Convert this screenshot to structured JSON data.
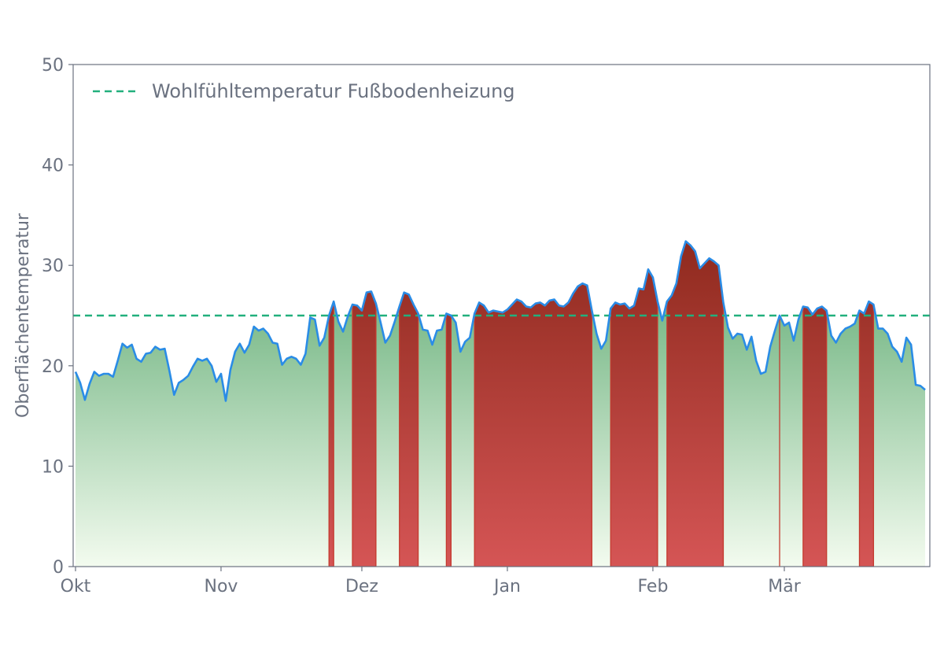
{
  "chart_data": {
    "type": "area",
    "ylabel": "Oberflächentemperatur",
    "xlabel": "",
    "ylim": [
      0,
      50
    ],
    "y_ticks": [
      0,
      10,
      20,
      30,
      40,
      50
    ],
    "x_ticks": [
      {
        "label": "Okt",
        "day": 0
      },
      {
        "label": "Nov",
        "day": 31
      },
      {
        "label": "Dez",
        "day": 61
      },
      {
        "label": "Jan",
        "day": 92
      },
      {
        "label": "Feb",
        "day": 123
      },
      {
        "label": "Mär",
        "day": 151
      }
    ],
    "x_range_days": [
      -0.5,
      182
    ],
    "threshold": {
      "label": "Wohlfühltemperatur Fußbodenheizung",
      "value": 25
    },
    "legend_position": "top-left",
    "series": [
      {
        "name": "Oberflächentemperatur",
        "points": [
          [
            0,
            19.4
          ],
          [
            1,
            18.3
          ],
          [
            2,
            16.6
          ],
          [
            3,
            18.2
          ],
          [
            4,
            19.4
          ],
          [
            5,
            19.0
          ],
          [
            6,
            19.2
          ],
          [
            7,
            19.2
          ],
          [
            8,
            18.9
          ],
          [
            9,
            20.5
          ],
          [
            10,
            22.2
          ],
          [
            11,
            21.8
          ],
          [
            12,
            22.1
          ],
          [
            13,
            20.7
          ],
          [
            14,
            20.4
          ],
          [
            15,
            21.2
          ],
          [
            16,
            21.3
          ],
          [
            17,
            21.9
          ],
          [
            18,
            21.6
          ],
          [
            19,
            21.7
          ],
          [
            20,
            19.5
          ],
          [
            21,
            17.1
          ],
          [
            22,
            18.3
          ],
          [
            23,
            18.6
          ],
          [
            24,
            19.0
          ],
          [
            25,
            19.9
          ],
          [
            26,
            20.7
          ],
          [
            27,
            20.5
          ],
          [
            28,
            20.7
          ],
          [
            29,
            20.0
          ],
          [
            30,
            18.4
          ],
          [
            31,
            19.2
          ],
          [
            32,
            16.5
          ],
          [
            33,
            19.6
          ],
          [
            34,
            21.4
          ],
          [
            35,
            22.2
          ],
          [
            36,
            21.3
          ],
          [
            37,
            22.1
          ],
          [
            38,
            23.9
          ],
          [
            39,
            23.5
          ],
          [
            40,
            23.7
          ],
          [
            41,
            23.2
          ],
          [
            42,
            22.3
          ],
          [
            43,
            22.2
          ],
          [
            44,
            20.1
          ],
          [
            45,
            20.7
          ],
          [
            46,
            20.9
          ],
          [
            47,
            20.7
          ],
          [
            48,
            20.1
          ],
          [
            49,
            21.2
          ],
          [
            50,
            24.8
          ],
          [
            51,
            24.6
          ],
          [
            52,
            22.0
          ],
          [
            53,
            22.8
          ],
          [
            54,
            25.0
          ],
          [
            55,
            26.4
          ],
          [
            56,
            24.4
          ],
          [
            57,
            23.4
          ],
          [
            58,
            24.9
          ],
          [
            59,
            26.1
          ],
          [
            60,
            26.0
          ],
          [
            61,
            25.5
          ],
          [
            62,
            27.3
          ],
          [
            63,
            27.4
          ],
          [
            64,
            26.2
          ],
          [
            65,
            24.3
          ],
          [
            66,
            22.3
          ],
          [
            67,
            23.0
          ],
          [
            68,
            24.4
          ],
          [
            69,
            25.9
          ],
          [
            70,
            27.3
          ],
          [
            71,
            27.1
          ],
          [
            72,
            26.1
          ],
          [
            73,
            25.2
          ],
          [
            74,
            23.6
          ],
          [
            75,
            23.5
          ],
          [
            76,
            22.1
          ],
          [
            77,
            23.5
          ],
          [
            78,
            23.6
          ],
          [
            79,
            25.2
          ],
          [
            80,
            25.0
          ],
          [
            81,
            24.3
          ],
          [
            82,
            21.4
          ],
          [
            83,
            22.4
          ],
          [
            84,
            22.8
          ],
          [
            85,
            25.2
          ],
          [
            86,
            26.3
          ],
          [
            87,
            26.0
          ],
          [
            88,
            25.3
          ],
          [
            89,
            25.5
          ],
          [
            90,
            25.4
          ],
          [
            91,
            25.3
          ],
          [
            92,
            25.6
          ],
          [
            93,
            26.1
          ],
          [
            94,
            26.6
          ],
          [
            95,
            26.4
          ],
          [
            96,
            25.9
          ],
          [
            97,
            25.8
          ],
          [
            98,
            26.2
          ],
          [
            99,
            26.3
          ],
          [
            100,
            26.0
          ],
          [
            101,
            26.5
          ],
          [
            102,
            26.6
          ],
          [
            103,
            26.0
          ],
          [
            104,
            25.9
          ],
          [
            105,
            26.3
          ],
          [
            106,
            27.2
          ],
          [
            107,
            27.9
          ],
          [
            108,
            28.2
          ],
          [
            109,
            28.0
          ],
          [
            110,
            25.5
          ],
          [
            111,
            23.2
          ],
          [
            112,
            21.7
          ],
          [
            113,
            22.5
          ],
          [
            114,
            25.7
          ],
          [
            115,
            26.3
          ],
          [
            116,
            26.1
          ],
          [
            117,
            26.2
          ],
          [
            118,
            25.7
          ],
          [
            119,
            26.0
          ],
          [
            120,
            27.7
          ],
          [
            121,
            27.6
          ],
          [
            122,
            29.6
          ],
          [
            123,
            28.8
          ],
          [
            124,
            26.4
          ],
          [
            125,
            24.5
          ],
          [
            126,
            26.4
          ],
          [
            127,
            27.0
          ],
          [
            128,
            28.2
          ],
          [
            129,
            30.9
          ],
          [
            130,
            32.4
          ],
          [
            131,
            32.0
          ],
          [
            132,
            31.4
          ],
          [
            133,
            29.7
          ],
          [
            134,
            30.2
          ],
          [
            135,
            30.7
          ],
          [
            136,
            30.4
          ],
          [
            137,
            30.0
          ],
          [
            138,
            26.3
          ],
          [
            139,
            23.8
          ],
          [
            140,
            22.7
          ],
          [
            141,
            23.2
          ],
          [
            142,
            23.1
          ],
          [
            143,
            21.6
          ],
          [
            144,
            22.9
          ],
          [
            145,
            20.5
          ],
          [
            146,
            19.2
          ],
          [
            147,
            19.4
          ],
          [
            148,
            21.9
          ],
          [
            149,
            23.5
          ],
          [
            150,
            25.0
          ],
          [
            151,
            24.0
          ],
          [
            152,
            24.3
          ],
          [
            153,
            22.5
          ],
          [
            154,
            24.6
          ],
          [
            155,
            25.9
          ],
          [
            156,
            25.8
          ],
          [
            157,
            25.1
          ],
          [
            158,
            25.7
          ],
          [
            159,
            25.9
          ],
          [
            160,
            25.5
          ],
          [
            161,
            23.0
          ],
          [
            162,
            22.3
          ],
          [
            163,
            23.2
          ],
          [
            164,
            23.7
          ],
          [
            165,
            23.9
          ],
          [
            166,
            24.2
          ],
          [
            167,
            25.5
          ],
          [
            168,
            25.2
          ],
          [
            169,
            26.4
          ],
          [
            170,
            26.1
          ],
          [
            171,
            23.7
          ],
          [
            172,
            23.7
          ],
          [
            173,
            23.2
          ],
          [
            174,
            21.9
          ],
          [
            175,
            21.4
          ],
          [
            176,
            20.4
          ],
          [
            177,
            22.8
          ],
          [
            178,
            22.1
          ],
          [
            179,
            18.1
          ],
          [
            180,
            18.0
          ],
          [
            181,
            17.6
          ]
        ]
      }
    ],
    "colors": {
      "line": "#2a8ce6",
      "threshold": "#22b07d",
      "fill_green_top": "#5aa86e",
      "fill_green_bottom": "#f3fbef",
      "fill_red_top": "#8f2a1e",
      "fill_red_bottom": "#d55555",
      "axis": "#6b7280"
    }
  }
}
